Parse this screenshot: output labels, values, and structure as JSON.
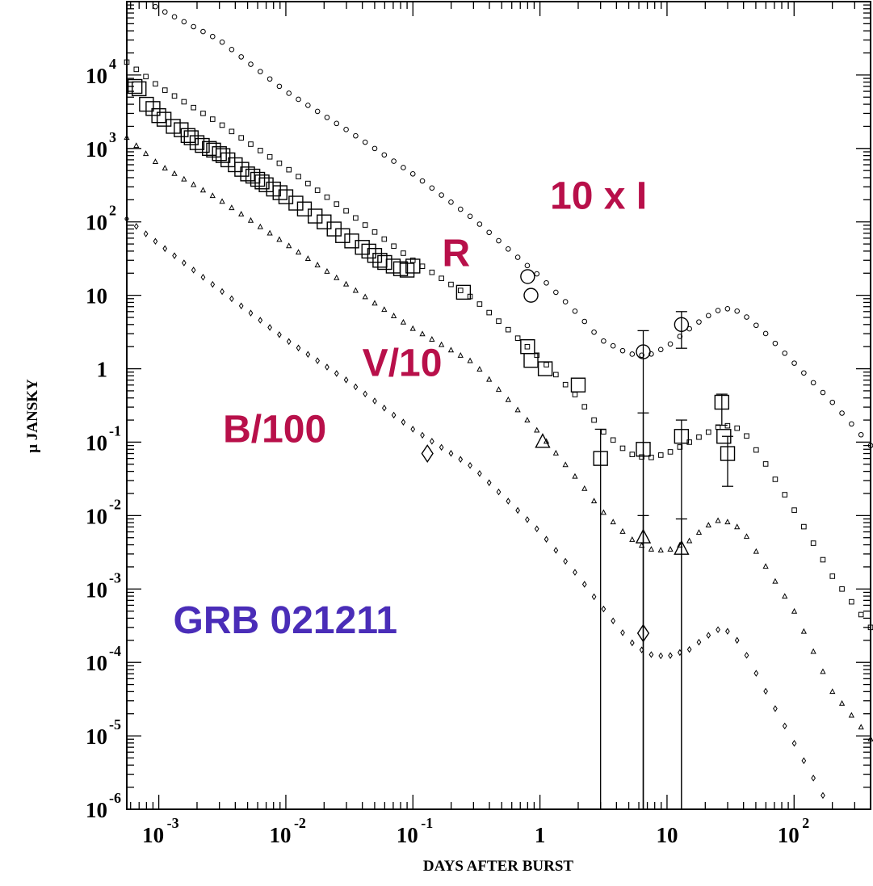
{
  "chart_data": {
    "type": "scatter",
    "title": "GRB 021211",
    "xlabel": "DAYS AFTER BURST",
    "ylabel": "μ JANSKY",
    "xscale": "log",
    "yscale": "log",
    "xlim": [
      0.00056,
      400
    ],
    "ylim": [
      1e-06,
      100000
    ],
    "x_ticks": [
      {
        "value": 0.001,
        "label": "10",
        "exp": "-3"
      },
      {
        "value": 0.01,
        "label": "10",
        "exp": "-2"
      },
      {
        "value": 0.1,
        "label": "10",
        "exp": "-1"
      },
      {
        "value": 1,
        "label": "1",
        "exp": ""
      },
      {
        "value": 10,
        "label": "10",
        "exp": ""
      },
      {
        "value": 100,
        "label": "10",
        "exp": "2"
      }
    ],
    "y_ticks": [
      {
        "value": 1e-06,
        "label": "10",
        "exp": "-6"
      },
      {
        "value": 1e-05,
        "label": "10",
        "exp": "-5"
      },
      {
        "value": 0.0001,
        "label": "10",
        "exp": "-4"
      },
      {
        "value": 0.001,
        "label": "10",
        "exp": "-3"
      },
      {
        "value": 0.01,
        "label": "10",
        "exp": "-2"
      },
      {
        "value": 0.1,
        "label": "10",
        "exp": "-1"
      },
      {
        "value": 1,
        "label": "1",
        "exp": ""
      },
      {
        "value": 10,
        "label": "10",
        "exp": ""
      },
      {
        "value": 100,
        "label": "10",
        "exp": "2"
      },
      {
        "value": 1000,
        "label": "10",
        "exp": "3"
      },
      {
        "value": 10000,
        "label": "10",
        "exp": "4"
      }
    ],
    "annotations": [
      {
        "text": "10 x I",
        "x": 1.2,
        "y": 150,
        "color": "#b8104a"
      },
      {
        "text": "R",
        "x": 0.17,
        "y": 25,
        "color": "#b8104a"
      },
      {
        "text": "V/10",
        "x": 0.04,
        "y": 0.8,
        "color": "#b8104a"
      },
      {
        "text": "B/100",
        "x": 0.0032,
        "y": 0.1,
        "color": "#b8104a"
      },
      {
        "text": "GRB 021211",
        "x": 0.0013,
        "y": 0.00025,
        "color": "#4a2db8"
      }
    ],
    "model_curves": [
      {
        "name": "10 x I",
        "marker": "circle",
        "x": [
          0.00056,
          0.001,
          0.003,
          0.01,
          0.03,
          0.1,
          0.3,
          1,
          2,
          3,
          5,
          7,
          10,
          15,
          20,
          25,
          32,
          40,
          60,
          100,
          200,
          400
        ],
        "y": [
          150000,
          80000,
          30000,
          6000,
          1800,
          450,
          110,
          18,
          5.5,
          2.5,
          1.6,
          1.5,
          2.0,
          3.5,
          5.0,
          6.2,
          6.7,
          5.5,
          3.0,
          1.2,
          0.35,
          0.09
        ]
      },
      {
        "name": "R",
        "marker": "square",
        "x": [
          0.00056,
          0.001,
          0.003,
          0.01,
          0.03,
          0.1,
          0.3,
          1,
          2,
          3,
          5,
          7,
          10,
          15,
          20,
          25,
          32,
          40,
          60,
          100,
          200,
          400
        ],
        "y": [
          15000,
          7000,
          2200,
          550,
          140,
          30,
          9,
          1.4,
          0.4,
          0.15,
          0.07,
          0.06,
          0.07,
          0.1,
          0.13,
          0.16,
          0.17,
          0.14,
          0.05,
          0.012,
          0.0015,
          0.0003
        ]
      },
      {
        "name": "V/10",
        "marker": "triangle",
        "x": [
          0.00056,
          0.001,
          0.003,
          0.01,
          0.03,
          0.1,
          0.3,
          1,
          2,
          3,
          5,
          7,
          10,
          15,
          20,
          25,
          32,
          40,
          60,
          100,
          200,
          400
        ],
        "y": [
          1400,
          600,
          200,
          50,
          14,
          3.5,
          1.2,
          0.13,
          0.03,
          0.012,
          0.005,
          0.0035,
          0.0033,
          0.0045,
          0.007,
          0.0085,
          0.008,
          0.006,
          0.002,
          0.0005,
          4e-05,
          9e-06
        ]
      },
      {
        "name": "B/100",
        "marker": "diamond",
        "x": [
          0.00056,
          0.001,
          0.003,
          0.01,
          0.03,
          0.1,
          0.3,
          1,
          2,
          3,
          5,
          7,
          10,
          15,
          20,
          25,
          32,
          40,
          60,
          100,
          200,
          400
        ],
        "y": [
          110,
          50,
          12,
          2.5,
          0.7,
          0.15,
          0.045,
          0.006,
          0.0015,
          0.0006,
          0.0002,
          0.00013,
          0.00012,
          0.00015,
          0.00022,
          0.00028,
          0.00026,
          0.00015,
          4e-05,
          8e-06,
          9e-07,
          2e-07
        ]
      }
    ],
    "observations": [
      {
        "name": "10 x I",
        "marker": "circle",
        "points": [
          {
            "x": 0.8,
            "y": 18
          },
          {
            "x": 0.85,
            "y": 10
          },
          {
            "x": 6.5,
            "y": 1.7,
            "lo": 1e-06,
            "hi": 3.3
          },
          {
            "x": 13,
            "y": 4,
            "lo": 1.9,
            "hi": 6
          }
        ]
      },
      {
        "name": "R",
        "marker": "square",
        "points": [
          {
            "x": 0.00065,
            "y": 7000
          },
          {
            "x": 0.0007,
            "y": 6500
          },
          {
            "x": 0.0008,
            "y": 4000
          },
          {
            "x": 0.0009,
            "y": 3500
          },
          {
            "x": 0.001,
            "y": 2800
          },
          {
            "x": 0.0011,
            "y": 2500
          },
          {
            "x": 0.0013,
            "y": 2000
          },
          {
            "x": 0.0015,
            "y": 1800
          },
          {
            "x": 0.0017,
            "y": 1500
          },
          {
            "x": 0.0018,
            "y": 1400
          },
          {
            "x": 0.002,
            "y": 1200
          },
          {
            "x": 0.0022,
            "y": 1100
          },
          {
            "x": 0.0025,
            "y": 1000
          },
          {
            "x": 0.0027,
            "y": 950
          },
          {
            "x": 0.003,
            "y": 850
          },
          {
            "x": 0.0032,
            "y": 800
          },
          {
            "x": 0.0035,
            "y": 700
          },
          {
            "x": 0.004,
            "y": 600
          },
          {
            "x": 0.0045,
            "y": 520
          },
          {
            "x": 0.005,
            "y": 450
          },
          {
            "x": 0.0055,
            "y": 420
          },
          {
            "x": 0.006,
            "y": 380
          },
          {
            "x": 0.0065,
            "y": 350
          },
          {
            "x": 0.007,
            "y": 320
          },
          {
            "x": 0.008,
            "y": 280
          },
          {
            "x": 0.009,
            "y": 250
          },
          {
            "x": 0.01,
            "y": 220
          },
          {
            "x": 0.012,
            "y": 180
          },
          {
            "x": 0.014,
            "y": 150
          },
          {
            "x": 0.017,
            "y": 120
          },
          {
            "x": 0.02,
            "y": 100
          },
          {
            "x": 0.024,
            "y": 80
          },
          {
            "x": 0.028,
            "y": 65
          },
          {
            "x": 0.033,
            "y": 55
          },
          {
            "x": 0.04,
            "y": 45
          },
          {
            "x": 0.045,
            "y": 40
          },
          {
            "x": 0.05,
            "y": 35
          },
          {
            "x": 0.055,
            "y": 30
          },
          {
            "x": 0.06,
            "y": 28
          },
          {
            "x": 0.07,
            "y": 25
          },
          {
            "x": 0.08,
            "y": 23
          },
          {
            "x": 0.09,
            "y": 22
          },
          {
            "x": 0.1,
            "y": 25
          },
          {
            "x": 0.25,
            "y": 11
          },
          {
            "x": 0.8,
            "y": 2
          },
          {
            "x": 0.85,
            "y": 1.3
          },
          {
            "x": 1.1,
            "y": 1
          },
          {
            "x": 2,
            "y": 0.6
          },
          {
            "x": 3,
            "y": 0.06,
            "lo": 1e-06,
            "hi": 0.15
          },
          {
            "x": 6.5,
            "y": 0.08,
            "lo": 1e-06,
            "hi": 0.25
          },
          {
            "x": 13,
            "y": 0.12,
            "lo": 1e-06,
            "hi": 0.2
          },
          {
            "x": 27,
            "y": 0.35,
            "lo": 0.17,
            "hi": 0.45
          },
          {
            "x": 28,
            "y": 0.12
          },
          {
            "x": 30,
            "y": 0.07,
            "lo": 0.025,
            "hi": 0.12
          }
        ]
      },
      {
        "name": "V/10",
        "marker": "triangle",
        "points": [
          {
            "x": 1.05,
            "y": 0.1
          },
          {
            "x": 6.5,
            "y": 0.005,
            "lo": 1e-06,
            "hi": 0.01
          },
          {
            "x": 13,
            "y": 0.0035,
            "lo": 1e-06,
            "hi": 0.009
          }
        ]
      },
      {
        "name": "B/100",
        "marker": "diamond",
        "points": [
          {
            "x": 0.13,
            "y": 0.07
          },
          {
            "x": 6.5,
            "y": 0.00025
          }
        ]
      }
    ]
  }
}
